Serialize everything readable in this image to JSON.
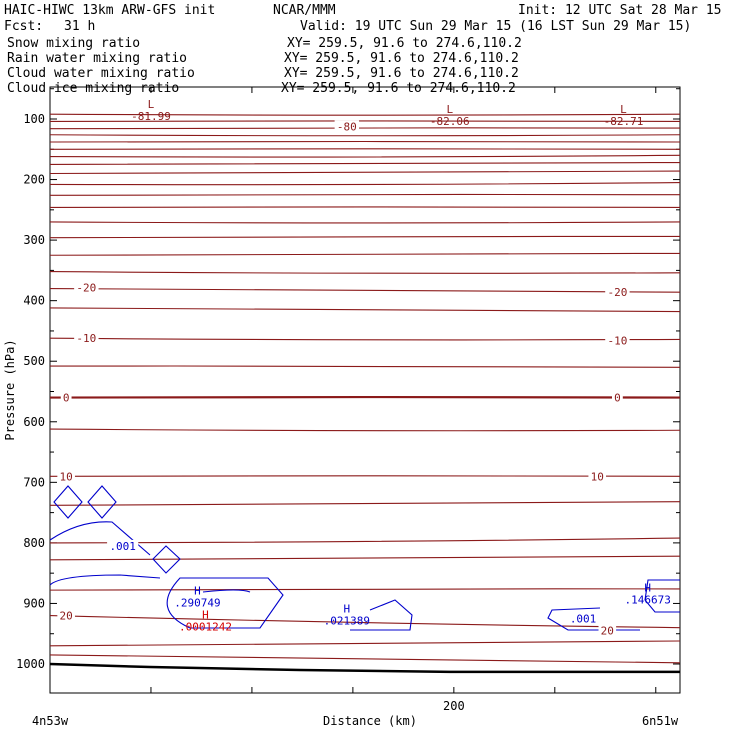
{
  "header": {
    "model": "HAIC-HIWC 13km ARW-GFS init",
    "org": "NCAR/MMM",
    "init": "Init: 12 UTC Sat 28 Mar 15",
    "fcst_label": "Fcst:",
    "fcst_value": "31 h",
    "valid": "Valid: 19 UTC Sun 29 Mar 15 (16 LST Sun 29 Mar 15)"
  },
  "fields": [
    {
      "name": "Snow mixing ratio",
      "xy": "XY= 259.5, 91.6 to 274.6,110.2",
      "color": "#000000"
    },
    {
      "name": "Rain water mixing ratio",
      "xy": "XY= 259.5, 91.6 to 274.6,110.2",
      "color": "#d40000"
    },
    {
      "name": "Cloud water mixing ratio",
      "xy": "XY= 259.5, 91.6 to 274.6,110.2",
      "color": "#0000cc"
    },
    {
      "name": "Cloud ice mixing ratio",
      "xy": "XY= 259.5, 91.6 to 274.6,110.2",
      "color": "#000000"
    }
  ],
  "chart_data": {
    "type": "contour cross-section",
    "xlabel": "Distance (km)",
    "ylabel": "Pressure (hPa)",
    "xlim": [
      0,
      312
    ],
    "ylim_hPa": [
      1040,
      40
    ],
    "x_ticks": [
      {
        "value": 200,
        "label": "200"
      }
    ],
    "x_start_label": "4n53w",
    "x_end_label": "6n51w",
    "y_ticks": [
      100,
      200,
      300,
      400,
      500,
      600,
      700,
      800,
      900,
      1000
    ],
    "temperature_labels": [
      {
        "text": "-80",
        "x": 147,
        "p": 112
      },
      {
        "text": "-20",
        "x": 18,
        "p": 378
      },
      {
        "text": "-20",
        "x": 281,
        "p": 386
      },
      {
        "text": "-10",
        "x": 18,
        "p": 462
      },
      {
        "text": "-10",
        "x": 281,
        "p": 466
      },
      {
        "text": "0",
        "x": 8,
        "p": 560
      },
      {
        "text": "0",
        "x": 281,
        "p": 560
      },
      {
        "text": "10",
        "x": 8,
        "p": 690
      },
      {
        "text": "10",
        "x": 271,
        "p": 690
      },
      {
        "text": "20",
        "x": 8,
        "p": 920
      },
      {
        "text": "20",
        "x": 276,
        "p": 945
      }
    ],
    "extrema_labels": [
      {
        "mark": "L",
        "value": "-81.99",
        "x": 50,
        "p": 82,
        "color": "#8b1a1a"
      },
      {
        "mark": "L",
        "value": "-82.06",
        "x": 198,
        "p": 90,
        "color": "#8b1a1a"
      },
      {
        "mark": "L",
        "value": "-82.71",
        "x": 284,
        "p": 90,
        "color": "#8b1a1a"
      },
      {
        "mark": "H",
        "value": ".290749",
        "x": 73,
        "p": 885,
        "color": "#0000cc"
      },
      {
        "mark": "H",
        "value": ".021389",
        "x": 147,
        "p": 915,
        "color": "#0000cc"
      },
      {
        "mark": "H",
        "value": ".146673",
        "x": 296,
        "p": 880,
        "color": "#0000cc"
      },
      {
        "mark": "H",
        "value": ".0001242",
        "x": 77,
        "p": 925,
        "color": "#d40000"
      }
    ],
    "cloud_labels": [
      {
        "text": ".001",
        "x": 36,
        "p": 805
      },
      {
        "text": ".001",
        "x": 264,
        "p": 925
      }
    ],
    "colors": {
      "temperature": "#8b1a1a",
      "cloud_water": "#0000cc",
      "rain": "#d40000",
      "terrain": "#000000"
    }
  }
}
